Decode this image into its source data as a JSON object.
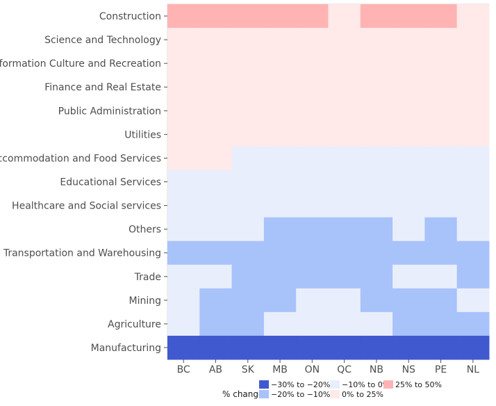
{
  "chart_data": {
    "type": "heatmap",
    "title": "",
    "xlabel": "",
    "ylabel": "",
    "x": [
      "BC",
      "AB",
      "SK",
      "MB",
      "ON",
      "QC",
      "NB",
      "NS",
      "PE",
      "NL"
    ],
    "y": [
      "Construction",
      "Science and Technology",
      "Information Culture and Recreation",
      "Finance and Real Estate",
      "Public Administration",
      "Utilities",
      "Accommodation and Food Services",
      "Educational Services",
      "Healthcare and Social services",
      "Others",
      "Transportation and Warehousing",
      "Trade",
      "Mining",
      "Agriculture",
      "Manufacturing"
    ],
    "categories": [
      "−30% to −20%",
      "−20% to −10%",
      "−10% to 0%",
      "0% to 25%",
      "25% to 50%"
    ],
    "colors": {
      "−30% to −20%": "#4059cf",
      "−20% to −10%": "#a8c2fa",
      "−10% to 0%": "#e8eefb",
      "0% to 25%": "#ffe9e9",
      "25% to 50%": "#ffb3b3"
    },
    "cells": [
      [
        4,
        4,
        4,
        4,
        4,
        3,
        4,
        4,
        4,
        3
      ],
      [
        3,
        3,
        3,
        3,
        3,
        3,
        3,
        3,
        3,
        3
      ],
      [
        3,
        3,
        3,
        3,
        3,
        3,
        3,
        3,
        3,
        3
      ],
      [
        3,
        3,
        3,
        3,
        3,
        3,
        3,
        3,
        3,
        3
      ],
      [
        3,
        3,
        3,
        3,
        3,
        3,
        3,
        3,
        3,
        3
      ],
      [
        3,
        3,
        3,
        3,
        3,
        3,
        3,
        3,
        3,
        3
      ],
      [
        3,
        3,
        2,
        2,
        2,
        2,
        2,
        2,
        2,
        2
      ],
      [
        2,
        2,
        2,
        2,
        2,
        2,
        2,
        2,
        2,
        2
      ],
      [
        2,
        2,
        2,
        2,
        2,
        2,
        2,
        2,
        2,
        2
      ],
      [
        2,
        2,
        2,
        1,
        1,
        1,
        1,
        2,
        1,
        2
      ],
      [
        1,
        1,
        1,
        1,
        1,
        1,
        1,
        1,
        1,
        1
      ],
      [
        2,
        2,
        1,
        1,
        1,
        1,
        1,
        2,
        2,
        1
      ],
      [
        2,
        1,
        1,
        1,
        2,
        2,
        1,
        1,
        1,
        2
      ],
      [
        2,
        1,
        1,
        2,
        2,
        2,
        2,
        1,
        1,
        1
      ],
      [
        0,
        0,
        0,
        0,
        0,
        0,
        0,
        0,
        0,
        0
      ]
    ],
    "legend": {
      "title": "% change",
      "position": "bottom"
    },
    "grid": false
  }
}
